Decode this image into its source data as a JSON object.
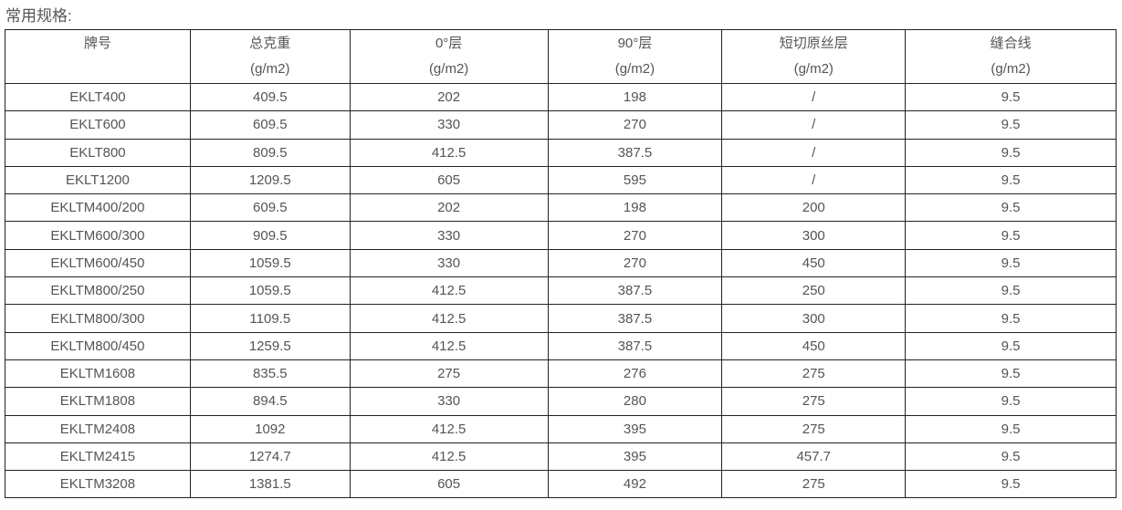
{
  "title": "常用规格:",
  "headers": [
    {
      "name": "牌号",
      "unit": ""
    },
    {
      "name": "总克重",
      "unit": "(g/m2)"
    },
    {
      "name": "0°层",
      "unit": "(g/m2)"
    },
    {
      "name": "90°层",
      "unit": "(g/m2)"
    },
    {
      "name": "短切原丝层",
      "unit": "(g/m2)"
    },
    {
      "name": "缝合线",
      "unit": "(g/m2)"
    }
  ],
  "rows": [
    [
      "EKLT400",
      "409.5",
      "202",
      "198",
      "/",
      "9.5"
    ],
    [
      "EKLT600",
      "609.5",
      "330",
      "270",
      "/",
      "9.5"
    ],
    [
      "EKLT800",
      "809.5",
      "412.5",
      "387.5",
      "/",
      "9.5"
    ],
    [
      "EKLT1200",
      "1209.5",
      "605",
      "595",
      "/",
      "9.5"
    ],
    [
      "EKLTM400/200",
      "609.5",
      "202",
      "198",
      "200",
      "9.5"
    ],
    [
      "EKLTM600/300",
      "909.5",
      "330",
      "270",
      "300",
      "9.5"
    ],
    [
      "EKLTM600/450",
      "1059.5",
      "330",
      "270",
      "450",
      "9.5"
    ],
    [
      "EKLTM800/250",
      "1059.5",
      "412.5",
      "387.5",
      "250",
      "9.5"
    ],
    [
      "EKLTM800/300",
      "1109.5",
      "412.5",
      "387.5",
      "300",
      "9.5"
    ],
    [
      "EKLTM800/450",
      "1259.5",
      "412.5",
      "387.5",
      "450",
      "9.5"
    ],
    [
      "EKLTM1608",
      "835.5",
      "275",
      "276",
      "275",
      "9.5"
    ],
    [
      "EKLTM1808",
      "894.5",
      "330",
      "280",
      "275",
      "9.5"
    ],
    [
      "EKLTM2408",
      "1092",
      "412.5",
      "395",
      "275",
      "9.5"
    ],
    [
      "EKLTM2415",
      "1274.7",
      "412.5",
      "395",
      "457.7",
      "9.5"
    ],
    [
      "EKLTM3208",
      "1381.5",
      "605",
      "492",
      "275",
      "9.5"
    ]
  ]
}
